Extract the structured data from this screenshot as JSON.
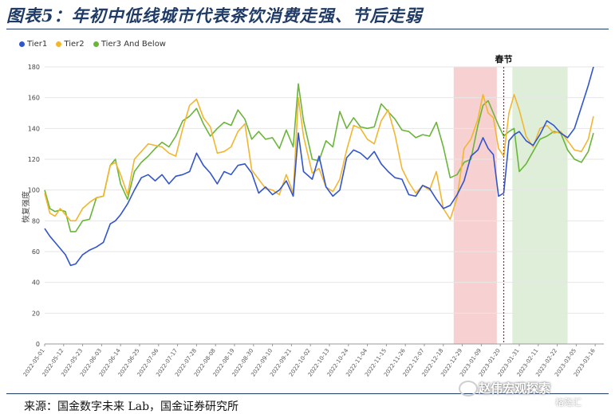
{
  "header": {
    "title": "图表5：年初中低线城市代表茶饮消费走强、节后走弱"
  },
  "footer": {
    "source": "来源：国金数字未来 Lab，国金证券研究所"
  },
  "watermark": {
    "text": "赵伟宏观探索",
    "sub": "格隆汇"
  },
  "colors": {
    "tier1": "#3355cc",
    "tier2": "#f2b630",
    "tier3": "#6ab53a",
    "pre_band": "#f6c9c9",
    "post_band": "#d9ebd2",
    "festival_line": "#c0182a"
  },
  "chart_data": {
    "type": "line",
    "ylabel": "恢复强度",
    "ylim": [
      0,
      180
    ],
    "yticks": [
      0,
      20,
      40,
      60,
      80,
      100,
      120,
      140,
      160,
      180
    ],
    "x_start": "2022-05-01",
    "x_end": "2023-03-21",
    "xtick_labels": [
      "2022-05-01",
      "2022-05-12",
      "2022-05-23",
      "2022-06-03",
      "2022-06-14",
      "2022-06-25",
      "2022-07-06",
      "2022-07-17",
      "2022-07-28",
      "2022-08-08",
      "2022-08-19",
      "2022-08-30",
      "2022-09-10",
      "2022-09-21",
      "2022-10-02",
      "2022-10-13",
      "2022-10-24",
      "2022-11-04",
      "2022-11-15",
      "2022-11-26",
      "2022-12-07",
      "2022-12-18",
      "2022-12-29",
      "2023-01-09",
      "2023-01-20",
      "2023-01-31",
      "2023-02-11",
      "2023-02-22",
      "2023-03-05",
      "2023-03-16"
    ],
    "annotation": {
      "label": "春节",
      "date": "2023-01-22"
    },
    "shaded_ranges": [
      {
        "name": "pre",
        "start": "2022-12-24",
        "end": "2023-01-18"
      },
      {
        "name": "post",
        "start": "2023-01-27",
        "end": "2023-02-28"
      }
    ],
    "series": [
      {
        "name": "Tier1",
        "points": [
          [
            "2022-05-01",
            75
          ],
          [
            "2022-05-04",
            70
          ],
          [
            "2022-05-07",
            66
          ],
          [
            "2022-05-10",
            62
          ],
          [
            "2022-05-13",
            58
          ],
          [
            "2022-05-16",
            51
          ],
          [
            "2022-05-19",
            52
          ],
          [
            "2022-05-23",
            58
          ],
          [
            "2022-05-27",
            61
          ],
          [
            "2022-05-31",
            63
          ],
          [
            "2022-06-04",
            66
          ],
          [
            "2022-06-08",
            78
          ],
          [
            "2022-06-11",
            80
          ],
          [
            "2022-06-14",
            84
          ],
          [
            "2022-06-18",
            91
          ],
          [
            "2022-06-22",
            100
          ],
          [
            "2022-06-26",
            108
          ],
          [
            "2022-06-30",
            110
          ],
          [
            "2022-07-04",
            106
          ],
          [
            "2022-07-08",
            110
          ],
          [
            "2022-07-12",
            104
          ],
          [
            "2022-07-16",
            109
          ],
          [
            "2022-07-20",
            110
          ],
          [
            "2022-07-24",
            112
          ],
          [
            "2022-07-28",
            124
          ],
          [
            "2022-08-01",
            116
          ],
          [
            "2022-08-05",
            111
          ],
          [
            "2022-08-09",
            104
          ],
          [
            "2022-08-13",
            112
          ],
          [
            "2022-08-17",
            110
          ],
          [
            "2022-08-21",
            116
          ],
          [
            "2022-08-25",
            117
          ],
          [
            "2022-08-29",
            111
          ],
          [
            "2022-09-02",
            98
          ],
          [
            "2022-09-06",
            102
          ],
          [
            "2022-09-10",
            97
          ],
          [
            "2022-09-14",
            100
          ],
          [
            "2022-09-18",
            106
          ],
          [
            "2022-09-22",
            96
          ],
          [
            "2022-09-25",
            137
          ],
          [
            "2022-09-28",
            112
          ],
          [
            "2022-10-03",
            107
          ],
          [
            "2022-10-07",
            122
          ],
          [
            "2022-10-11",
            102
          ],
          [
            "2022-10-15",
            96
          ],
          [
            "2022-10-19",
            100
          ],
          [
            "2022-10-23",
            121
          ],
          [
            "2022-10-27",
            126
          ],
          [
            "2022-10-31",
            124
          ],
          [
            "2022-11-04",
            120
          ],
          [
            "2022-11-08",
            125
          ],
          [
            "2022-11-12",
            117
          ],
          [
            "2022-11-16",
            112
          ],
          [
            "2022-11-20",
            108
          ],
          [
            "2022-11-24",
            107
          ],
          [
            "2022-11-28",
            97
          ],
          [
            "2022-12-02",
            96
          ],
          [
            "2022-12-06",
            103
          ],
          [
            "2022-12-10",
            101
          ],
          [
            "2022-12-14",
            94
          ],
          [
            "2022-12-18",
            88
          ],
          [
            "2022-12-22",
            90
          ],
          [
            "2022-12-26",
            97
          ],
          [
            "2022-12-30",
            106
          ],
          [
            "2023-01-03",
            122
          ],
          [
            "2023-01-07",
            126
          ],
          [
            "2023-01-10",
            134
          ],
          [
            "2023-01-13",
            127
          ],
          [
            "2023-01-16",
            123
          ],
          [
            "2023-01-19",
            96
          ],
          [
            "2023-01-22",
            98
          ],
          [
            "2023-01-25",
            132
          ],
          [
            "2023-01-28",
            136
          ],
          [
            "2023-01-31",
            138
          ],
          [
            "2023-02-04",
            132
          ],
          [
            "2023-02-08",
            129
          ],
          [
            "2023-02-12",
            136
          ],
          [
            "2023-02-16",
            145
          ],
          [
            "2023-02-20",
            142
          ],
          [
            "2023-02-24",
            137
          ],
          [
            "2023-02-28",
            134
          ],
          [
            "2023-03-04",
            140
          ],
          [
            "2023-03-08",
            154
          ],
          [
            "2023-03-12",
            168
          ],
          [
            "2023-03-15",
            180
          ]
        ]
      },
      {
        "name": "Tier2",
        "points": [
          [
            "2022-05-01",
            98
          ],
          [
            "2022-05-04",
            85
          ],
          [
            "2022-05-07",
            83
          ],
          [
            "2022-05-10",
            88
          ],
          [
            "2022-05-13",
            84
          ],
          [
            "2022-05-16",
            80
          ],
          [
            "2022-05-19",
            80
          ],
          [
            "2022-05-23",
            88
          ],
          [
            "2022-05-27",
            92
          ],
          [
            "2022-05-31",
            95
          ],
          [
            "2022-06-04",
            96
          ],
          [
            "2022-06-08",
            116
          ],
          [
            "2022-06-11",
            118
          ],
          [
            "2022-06-14",
            110
          ],
          [
            "2022-06-18",
            97
          ],
          [
            "2022-06-22",
            120
          ],
          [
            "2022-06-26",
            125
          ],
          [
            "2022-06-30",
            130
          ],
          [
            "2022-07-04",
            129
          ],
          [
            "2022-07-08",
            128
          ],
          [
            "2022-07-12",
            124
          ],
          [
            "2022-07-16",
            122
          ],
          [
            "2022-07-20",
            140
          ],
          [
            "2022-07-24",
            155
          ],
          [
            "2022-07-28",
            159
          ],
          [
            "2022-08-01",
            147
          ],
          [
            "2022-08-05",
            141
          ],
          [
            "2022-08-09",
            124
          ],
          [
            "2022-08-13",
            125
          ],
          [
            "2022-08-17",
            128
          ],
          [
            "2022-08-21",
            138
          ],
          [
            "2022-08-25",
            143
          ],
          [
            "2022-08-29",
            113
          ],
          [
            "2022-09-02",
            107
          ],
          [
            "2022-09-06",
            101
          ],
          [
            "2022-09-10",
            100
          ],
          [
            "2022-09-14",
            97
          ],
          [
            "2022-09-18",
            110
          ],
          [
            "2022-09-22",
            98
          ],
          [
            "2022-09-25",
            160
          ],
          [
            "2022-09-28",
            135
          ],
          [
            "2022-10-03",
            111
          ],
          [
            "2022-10-07",
            114
          ],
          [
            "2022-10-11",
            102
          ],
          [
            "2022-10-15",
            99
          ],
          [
            "2022-10-19",
            107
          ],
          [
            "2022-10-23",
            126
          ],
          [
            "2022-10-27",
            142
          ],
          [
            "2022-10-31",
            140
          ],
          [
            "2022-11-04",
            133
          ],
          [
            "2022-11-08",
            130
          ],
          [
            "2022-11-12",
            145
          ],
          [
            "2022-11-16",
            152
          ],
          [
            "2022-11-20",
            136
          ],
          [
            "2022-11-24",
            114
          ],
          [
            "2022-11-28",
            105
          ],
          [
            "2022-12-02",
            98
          ],
          [
            "2022-12-06",
            103
          ],
          [
            "2022-12-10",
            100
          ],
          [
            "2022-12-14",
            112
          ],
          [
            "2022-12-18",
            88
          ],
          [
            "2022-12-22",
            81
          ],
          [
            "2022-12-26",
            95
          ],
          [
            "2022-12-30",
            127
          ],
          [
            "2023-01-03",
            133
          ],
          [
            "2023-01-07",
            146
          ],
          [
            "2023-01-10",
            162
          ],
          [
            "2023-01-13",
            150
          ],
          [
            "2023-01-16",
            147
          ],
          [
            "2023-01-19",
            127
          ],
          [
            "2023-01-22",
            122
          ],
          [
            "2023-01-25",
            150
          ],
          [
            "2023-01-28",
            162
          ],
          [
            "2023-01-31",
            152
          ],
          [
            "2023-02-04",
            135
          ],
          [
            "2023-02-08",
            128
          ],
          [
            "2023-02-12",
            140
          ],
          [
            "2023-02-16",
            142
          ],
          [
            "2023-02-20",
            137
          ],
          [
            "2023-02-24",
            138
          ],
          [
            "2023-02-28",
            132
          ],
          [
            "2023-03-04",
            126
          ],
          [
            "2023-03-08",
            125
          ],
          [
            "2023-03-12",
            133
          ],
          [
            "2023-03-15",
            148
          ]
        ]
      },
      {
        "name": "Tier3 And Below",
        "points": [
          [
            "2022-05-01",
            100
          ],
          [
            "2022-05-04",
            88
          ],
          [
            "2022-05-07",
            86
          ],
          [
            "2022-05-10",
            87
          ],
          [
            "2022-05-13",
            86
          ],
          [
            "2022-05-16",
            73
          ],
          [
            "2022-05-19",
            73
          ],
          [
            "2022-05-23",
            80
          ],
          [
            "2022-05-27",
            81
          ],
          [
            "2022-05-31",
            95
          ],
          [
            "2022-06-04",
            96
          ],
          [
            "2022-06-08",
            116
          ],
          [
            "2022-06-11",
            120
          ],
          [
            "2022-06-14",
            104
          ],
          [
            "2022-06-18",
            94
          ],
          [
            "2022-06-22",
            112
          ],
          [
            "2022-06-26",
            118
          ],
          [
            "2022-06-30",
            122
          ],
          [
            "2022-07-04",
            127
          ],
          [
            "2022-07-08",
            131
          ],
          [
            "2022-07-12",
            128
          ],
          [
            "2022-07-16",
            135
          ],
          [
            "2022-07-20",
            145
          ],
          [
            "2022-07-24",
            148
          ],
          [
            "2022-07-28",
            153
          ],
          [
            "2022-08-01",
            143
          ],
          [
            "2022-08-05",
            135
          ],
          [
            "2022-08-09",
            140
          ],
          [
            "2022-08-13",
            144
          ],
          [
            "2022-08-17",
            142
          ],
          [
            "2022-08-21",
            152
          ],
          [
            "2022-08-25",
            146
          ],
          [
            "2022-08-29",
            133
          ],
          [
            "2022-09-02",
            138
          ],
          [
            "2022-09-06",
            133
          ],
          [
            "2022-09-10",
            134
          ],
          [
            "2022-09-14",
            127
          ],
          [
            "2022-09-18",
            139
          ],
          [
            "2022-09-22",
            128
          ],
          [
            "2022-09-25",
            169
          ],
          [
            "2022-09-28",
            145
          ],
          [
            "2022-10-03",
            120
          ],
          [
            "2022-10-07",
            119
          ],
          [
            "2022-10-11",
            132
          ],
          [
            "2022-10-15",
            128
          ],
          [
            "2022-10-19",
            151
          ],
          [
            "2022-10-23",
            140
          ],
          [
            "2022-10-27",
            147
          ],
          [
            "2022-10-31",
            141
          ],
          [
            "2022-11-04",
            140
          ],
          [
            "2022-11-08",
            141
          ],
          [
            "2022-11-12",
            156
          ],
          [
            "2022-11-16",
            151
          ],
          [
            "2022-11-20",
            146
          ],
          [
            "2022-11-24",
            139
          ],
          [
            "2022-11-28",
            138
          ],
          [
            "2022-12-02",
            134
          ],
          [
            "2022-12-06",
            136
          ],
          [
            "2022-12-10",
            135
          ],
          [
            "2022-12-14",
            144
          ],
          [
            "2022-12-18",
            128
          ],
          [
            "2022-12-22",
            108
          ],
          [
            "2022-12-26",
            110
          ],
          [
            "2022-12-30",
            118
          ],
          [
            "2023-01-03",
            120
          ],
          [
            "2023-01-07",
            142
          ],
          [
            "2023-01-10",
            155
          ],
          [
            "2023-01-13",
            158
          ],
          [
            "2023-01-16",
            150
          ],
          [
            "2023-01-19",
            142
          ],
          [
            "2023-01-22",
            135
          ],
          [
            "2023-01-25",
            138
          ],
          [
            "2023-01-28",
            140
          ],
          [
            "2023-01-31",
            112
          ],
          [
            "2023-02-04",
            117
          ],
          [
            "2023-02-08",
            125
          ],
          [
            "2023-02-12",
            133
          ],
          [
            "2023-02-16",
            135
          ],
          [
            "2023-02-20",
            138
          ],
          [
            "2023-02-24",
            137
          ],
          [
            "2023-02-28",
            126
          ],
          [
            "2023-03-04",
            120
          ],
          [
            "2023-03-08",
            118
          ],
          [
            "2023-03-12",
            125
          ],
          [
            "2023-03-15",
            137
          ]
        ]
      }
    ]
  }
}
